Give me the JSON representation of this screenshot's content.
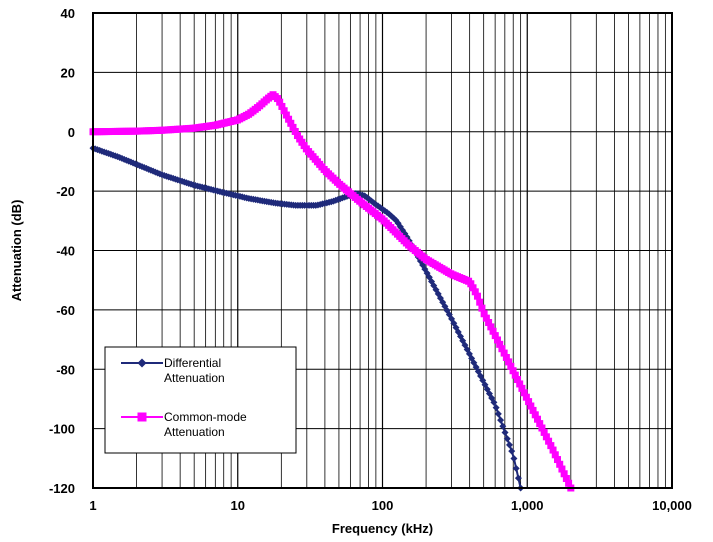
{
  "chart_data": {
    "type": "line",
    "xlabel": "Frequency (kHz)",
    "ylabel": "Attenuation (dB)",
    "x_scale": "log",
    "xlim": [
      1,
      10000
    ],
    "ylim": [
      -120,
      40
    ],
    "x_ticks": [
      1,
      10,
      100,
      1000,
      10000
    ],
    "x_tick_labels": [
      "1",
      "10",
      "100",
      "1,000",
      "10,000"
    ],
    "y_ticks": [
      40,
      20,
      0,
      -20,
      -40,
      -60,
      -80,
      -100,
      -120
    ],
    "y_tick_labels": [
      "40",
      "20",
      "0",
      "-20",
      "-40",
      "-60",
      "-80",
      "-100",
      "-120"
    ],
    "grid": true,
    "legend_position": "bottom-left",
    "series": [
      {
        "name": "Differential Attenuation",
        "color": "#1f2a7a",
        "marker": "diamond",
        "x": [
          1,
          1.5,
          2,
          3,
          5,
          8,
          12,
          18,
          25,
          35,
          45,
          55,
          65,
          75,
          90,
          110,
          125,
          150,
          200,
          300,
          400,
          600,
          800,
          900
        ],
        "y": [
          -5.5,
          -8.5,
          -11,
          -14.5,
          -18,
          -20.5,
          -22.5,
          -24,
          -24.8,
          -24.8,
          -23.5,
          -22,
          -20.8,
          -21.5,
          -24.5,
          -27.5,
          -30,
          -36,
          -47,
          -63,
          -75,
          -92,
          -109,
          -120
        ]
      },
      {
        "name": "Common-mode Attenuation",
        "color": "#ff00ff",
        "marker": "square",
        "x": [
          1,
          2,
          3,
          5,
          7,
          10,
          12,
          14,
          16,
          17.5,
          19,
          22,
          26,
          30,
          40,
          50,
          70,
          100,
          150,
          200,
          300,
          400,
          450,
          500,
          700,
          1000,
          1500,
          2000
        ],
        "y": [
          0,
          0.2,
          0.5,
          1.2,
          2.2,
          4,
          6,
          8.5,
          11,
          12.5,
          11,
          5,
          -1.5,
          -6,
          -13,
          -17.5,
          -23.5,
          -29.5,
          -38,
          -43,
          -48,
          -50.5,
          -55,
          -61,
          -75,
          -90,
          -107,
          -120
        ]
      }
    ]
  }
}
